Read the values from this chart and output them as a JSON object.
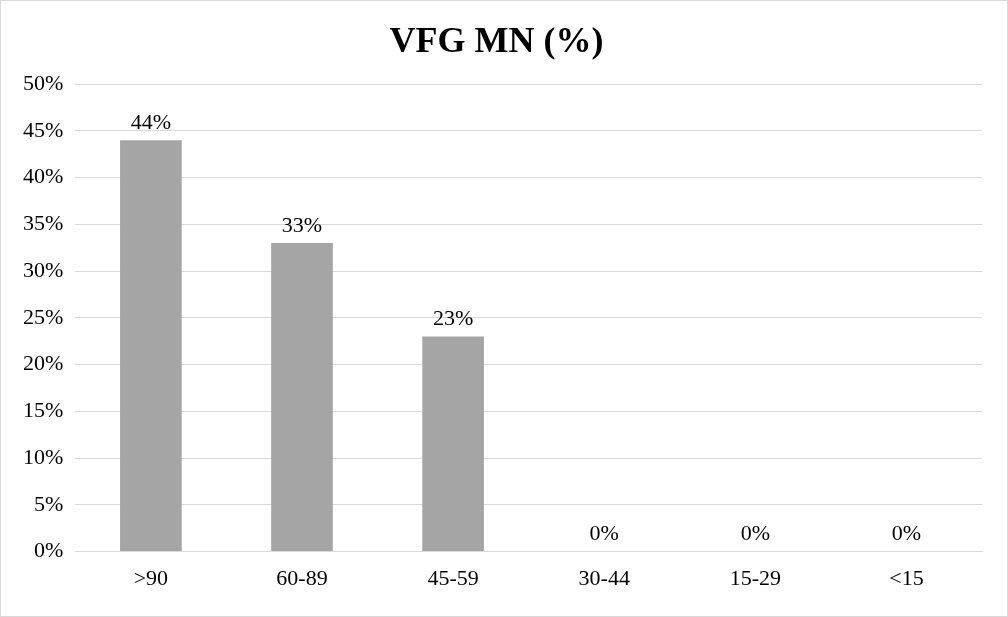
{
  "chart_data": {
    "type": "bar",
    "title": "VFG MN (%)",
    "categories": [
      ">90",
      "60-89",
      "45-59",
      "30-44",
      "15-29",
      "<15"
    ],
    "values": [
      44,
      33,
      23,
      0,
      0,
      0
    ],
    "value_labels": [
      "44%",
      "33%",
      "23%",
      "0%",
      "0%",
      "0%"
    ],
    "color": "#a5a5a5",
    "ylim": [
      0,
      50
    ],
    "yticks": [
      {
        "value": 0,
        "label": "0%"
      },
      {
        "value": 5,
        "label": "5%"
      },
      {
        "value": 10,
        "label": "10%"
      },
      {
        "value": 15,
        "label": "15%"
      },
      {
        "value": 20,
        "label": "20%"
      },
      {
        "value": 25,
        "label": "25%"
      },
      {
        "value": 30,
        "label": "30%"
      },
      {
        "value": 35,
        "label": "35%"
      },
      {
        "value": 40,
        "label": "40%"
      },
      {
        "value": 45,
        "label": "45%"
      },
      {
        "value": 50,
        "label": "50%"
      }
    ],
    "grid": "y"
  }
}
